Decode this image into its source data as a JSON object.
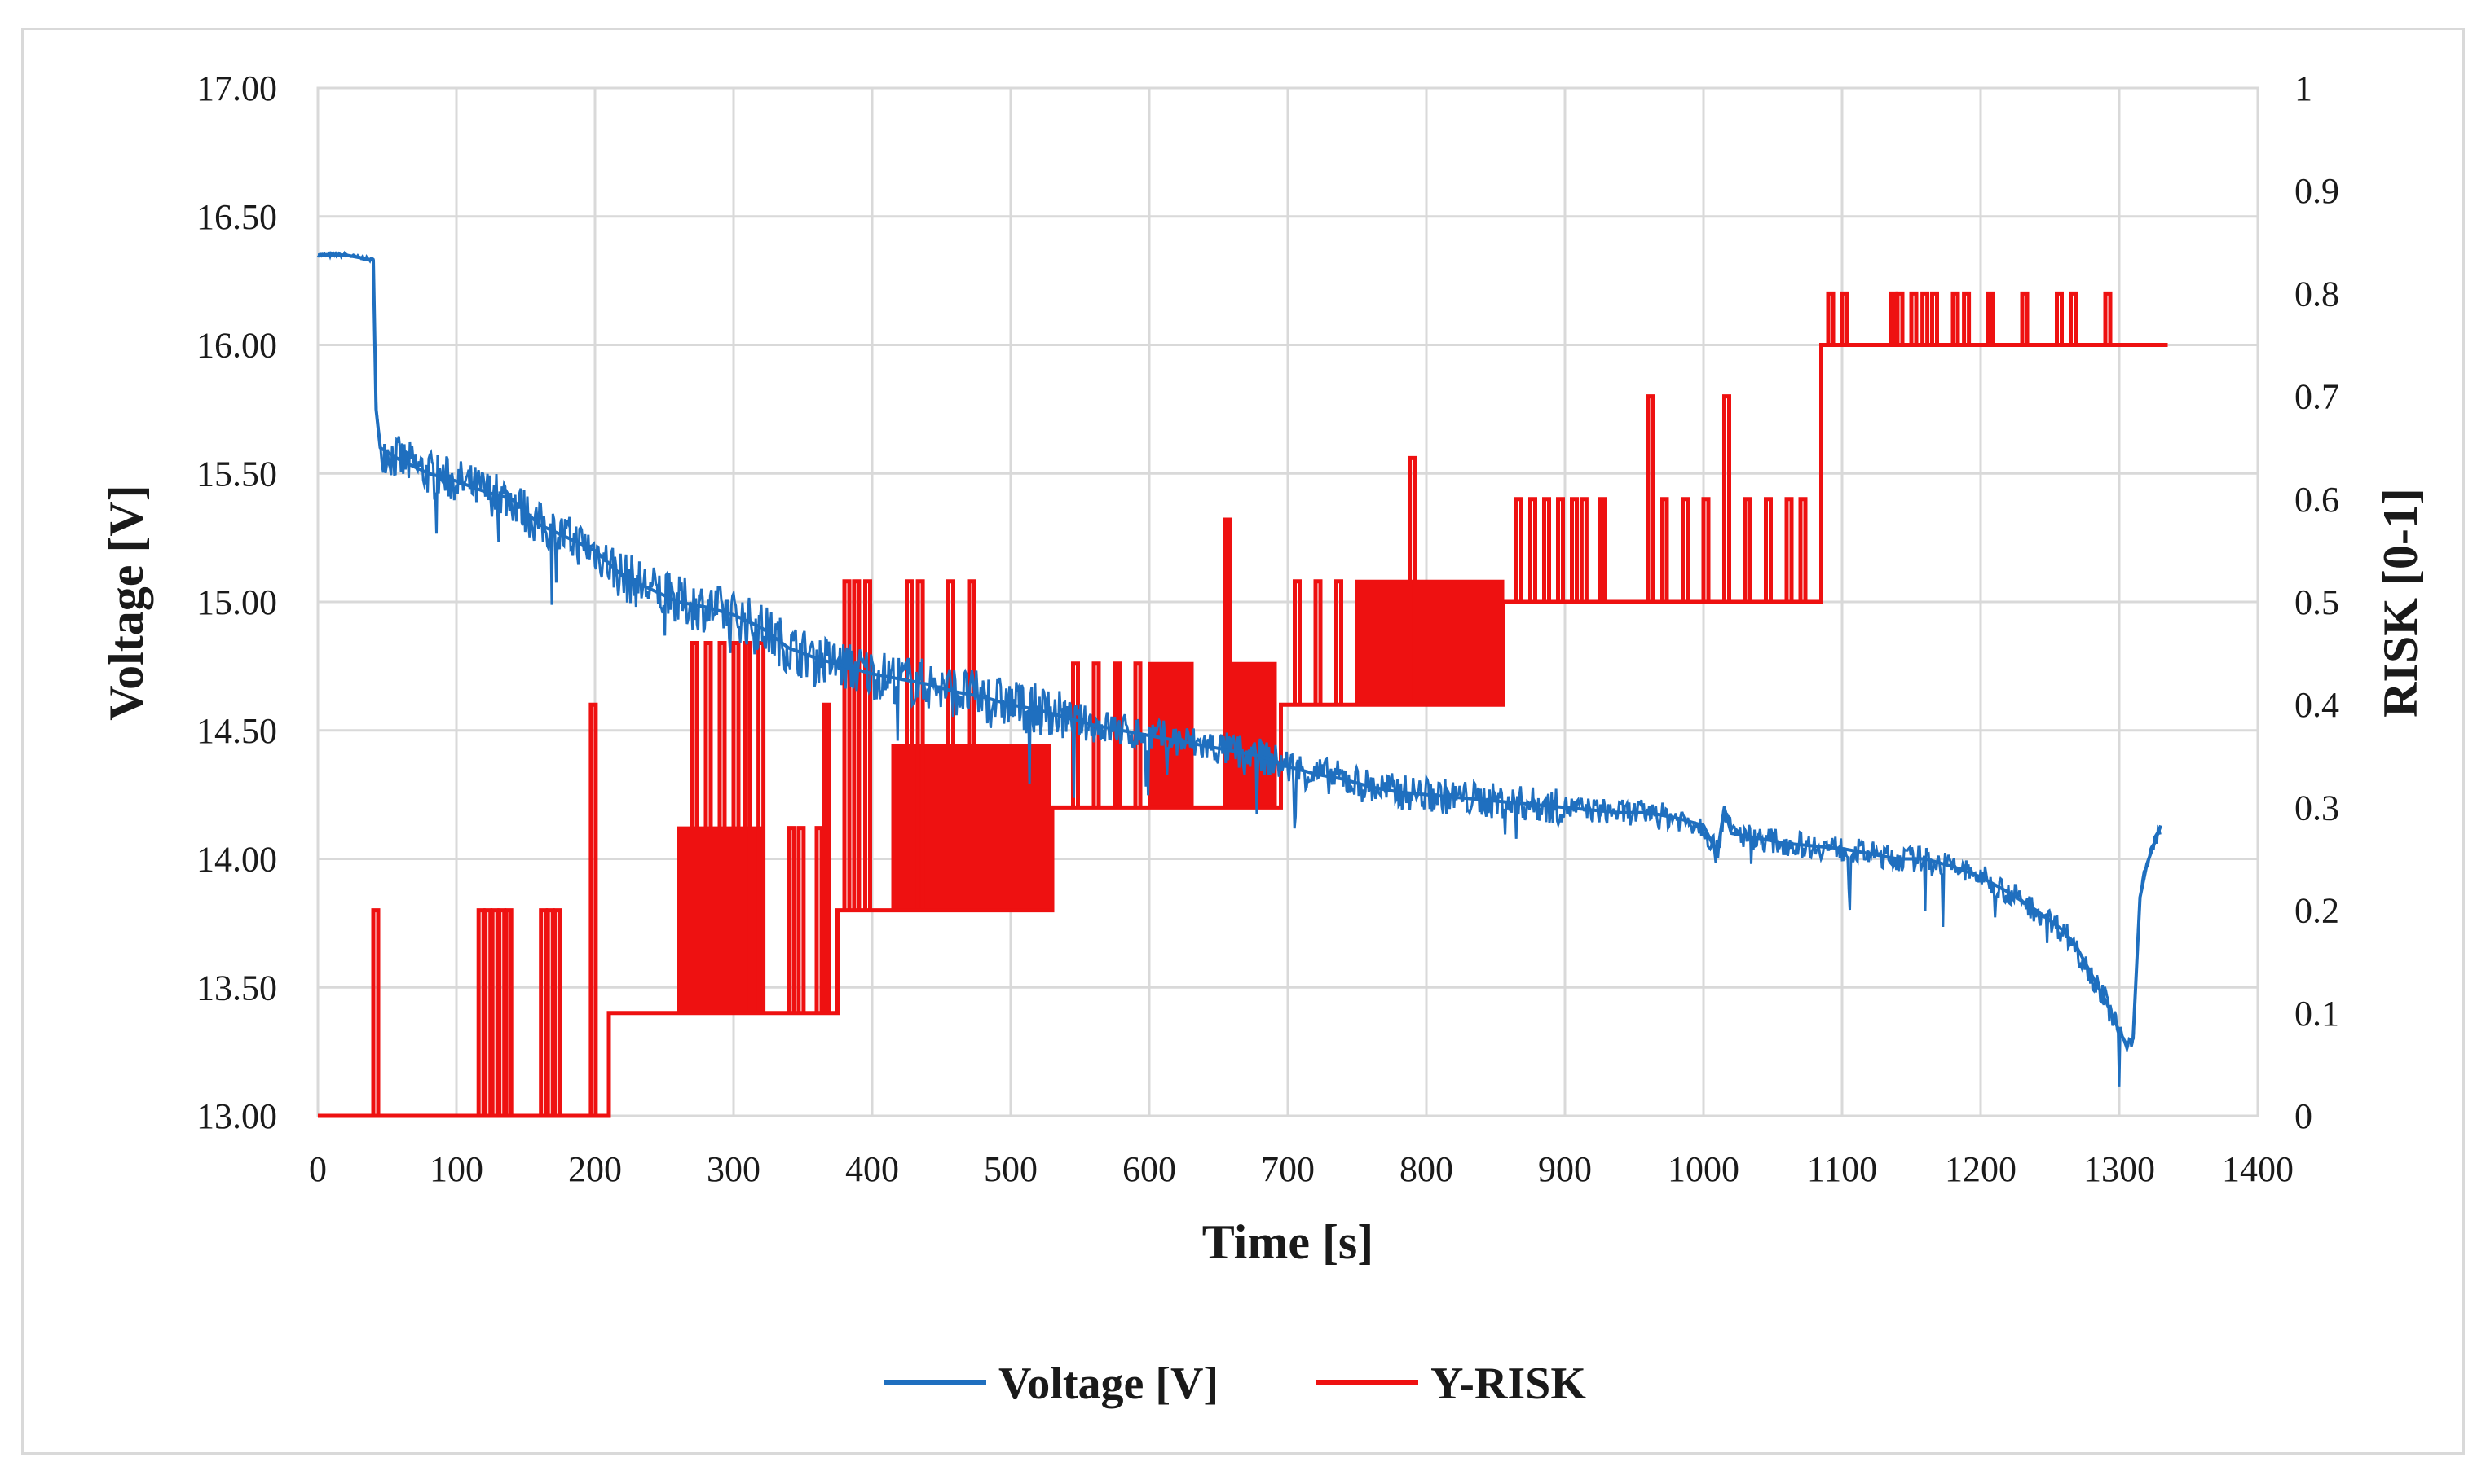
{
  "chart_data": {
    "type": "line",
    "title": "",
    "xlabel": "Time [s]",
    "ylabel": "Voltage [V]",
    "y2label": "RISK [0-1]",
    "xlim": [
      0,
      1400
    ],
    "ylim": [
      13.0,
      17.0
    ],
    "y2lim": [
      0,
      1
    ],
    "grid": true,
    "legend_position": "bottom-center",
    "x_ticks": [
      "0",
      "100",
      "200",
      "300",
      "400",
      "500",
      "600",
      "700",
      "800",
      "900",
      "1000",
      "1100",
      "1200",
      "1300",
      "1400"
    ],
    "y_ticks": [
      "13.00",
      "13.50",
      "14.00",
      "14.50",
      "15.00",
      "15.50",
      "16.00",
      "16.50",
      "17.00"
    ],
    "y2_ticks": [
      "0",
      "0.1",
      "0.2",
      "0.3",
      "0.4",
      "0.5",
      "0.6",
      "0.7",
      "0.8",
      "0.9",
      "1"
    ],
    "series": [
      {
        "name": "Voltage [V]",
        "axis": "left",
        "color": "#1f6fbf",
        "x": [
          0,
          20,
          40,
          42,
          45,
          60,
          80,
          100,
          120,
          140,
          160,
          180,
          200,
          220,
          240,
          260,
          280,
          300,
          320,
          340,
          360,
          380,
          400,
          420,
          440,
          460,
          480,
          500,
          520,
          540,
          560,
          580,
          600,
          620,
          640,
          660,
          680,
          700,
          720,
          740,
          760,
          780,
          800,
          820,
          840,
          860,
          880,
          900,
          920,
          940,
          960,
          980,
          1000,
          1010,
          1015,
          1020,
          1040,
          1060,
          1080,
          1100,
          1120,
          1140,
          1160,
          1180,
          1200,
          1220,
          1240,
          1260,
          1270,
          1280,
          1290,
          1300,
          1305,
          1310,
          1315,
          1320,
          1330
        ],
        "values": [
          16.35,
          16.35,
          16.33,
          15.75,
          15.6,
          15.55,
          15.5,
          15.47,
          15.43,
          15.4,
          15.3,
          15.25,
          15.2,
          15.1,
          15.05,
          15.0,
          14.98,
          14.95,
          14.9,
          14.82,
          14.78,
          14.75,
          14.72,
          14.7,
          14.68,
          14.65,
          14.63,
          14.6,
          14.58,
          14.55,
          14.52,
          14.5,
          14.48,
          14.46,
          14.44,
          14.42,
          14.4,
          14.36,
          14.33,
          14.31,
          14.28,
          14.26,
          14.25,
          14.24,
          14.23,
          14.22,
          14.21,
          14.2,
          14.19,
          14.18,
          14.18,
          14.16,
          14.13,
          14.02,
          14.2,
          14.1,
          14.08,
          14.06,
          14.05,
          14.04,
          14.02,
          14.0,
          14.0,
          13.97,
          13.93,
          13.87,
          13.8,
          13.72,
          13.65,
          13.55,
          13.45,
          13.33,
          13.28,
          13.3,
          13.85,
          13.98,
          14.13
        ]
      },
      {
        "name": "Y-RISK",
        "axis": "right",
        "color": "#ee1111",
        "x": [
          0,
          210,
          210,
          375,
          375,
          530,
          530,
          695,
          695,
          855,
          855,
          1085,
          1085,
          1335
        ],
        "values": [
          0,
          0,
          0.1,
          0.1,
          0.2,
          0.2,
          0.3,
          0.3,
          0.4,
          0.4,
          0.5,
          0.5,
          0.75,
          0.75
        ]
      }
    ],
    "risk_bands": [
      {
        "x_start": 260,
        "x_end": 320,
        "low": 0.1,
        "high": 0.28
      },
      {
        "x_start": 415,
        "x_end": 530,
        "low": 0.2,
        "high": 0.36
      },
      {
        "x_start": 600,
        "x_end": 630,
        "low": 0.3,
        "high": 0.44
      },
      {
        "x_start": 660,
        "x_end": 690,
        "low": 0.3,
        "high": 0.44
      },
      {
        "x_start": 750,
        "x_end": 855,
        "low": 0.4,
        "high": 0.52
      }
    ],
    "risk_spikes": [
      {
        "x": 40,
        "base": 0,
        "top": 0.2
      },
      {
        "x": 116,
        "base": 0,
        "top": 0.2
      },
      {
        "x": 121,
        "base": 0,
        "top": 0.2
      },
      {
        "x": 126,
        "base": 0,
        "top": 0.2
      },
      {
        "x": 131,
        "base": 0,
        "top": 0.2
      },
      {
        "x": 136,
        "base": 0,
        "top": 0.2
      },
      {
        "x": 161,
        "base": 0,
        "top": 0.2
      },
      {
        "x": 166,
        "base": 0,
        "top": 0.2
      },
      {
        "x": 171,
        "base": 0,
        "top": 0.2
      },
      {
        "x": 197,
        "base": 0,
        "top": 0.4
      },
      {
        "x": 270,
        "base": 0.1,
        "top": 0.46
      },
      {
        "x": 280,
        "base": 0.1,
        "top": 0.46
      },
      {
        "x": 290,
        "base": 0.1,
        "top": 0.46
      },
      {
        "x": 300,
        "base": 0.1,
        "top": 0.46
      },
      {
        "x": 308,
        "base": 0.1,
        "top": 0.46
      },
      {
        "x": 318,
        "base": 0.1,
        "top": 0.46
      },
      {
        "x": 340,
        "base": 0.1,
        "top": 0.28
      },
      {
        "x": 347,
        "base": 0.1,
        "top": 0.28
      },
      {
        "x": 360,
        "base": 0.1,
        "top": 0.28
      },
      {
        "x": 365,
        "base": 0.1,
        "top": 0.4
      },
      {
        "x": 380,
        "base": 0.2,
        "top": 0.52
      },
      {
        "x": 387,
        "base": 0.2,
        "top": 0.52
      },
      {
        "x": 395,
        "base": 0.2,
        "top": 0.52
      },
      {
        "x": 425,
        "base": 0.2,
        "top": 0.52
      },
      {
        "x": 433,
        "base": 0.2,
        "top": 0.52
      },
      {
        "x": 455,
        "base": 0.2,
        "top": 0.52
      },
      {
        "x": 470,
        "base": 0.2,
        "top": 0.52
      },
      {
        "x": 545,
        "base": 0.3,
        "top": 0.44
      },
      {
        "x": 560,
        "base": 0.3,
        "top": 0.44
      },
      {
        "x": 575,
        "base": 0.3,
        "top": 0.44
      },
      {
        "x": 590,
        "base": 0.3,
        "top": 0.44
      },
      {
        "x": 655,
        "base": 0.3,
        "top": 0.58
      },
      {
        "x": 705,
        "base": 0.4,
        "top": 0.52
      },
      {
        "x": 720,
        "base": 0.4,
        "top": 0.52
      },
      {
        "x": 735,
        "base": 0.4,
        "top": 0.52
      },
      {
        "x": 788,
        "base": 0.4,
        "top": 0.64
      },
      {
        "x": 865,
        "base": 0.5,
        "top": 0.6
      },
      {
        "x": 875,
        "base": 0.5,
        "top": 0.6
      },
      {
        "x": 885,
        "base": 0.5,
        "top": 0.6
      },
      {
        "x": 895,
        "base": 0.5,
        "top": 0.6
      },
      {
        "x": 905,
        "base": 0.5,
        "top": 0.6
      },
      {
        "x": 912,
        "base": 0.5,
        "top": 0.6
      },
      {
        "x": 925,
        "base": 0.5,
        "top": 0.6
      },
      {
        "x": 960,
        "base": 0.5,
        "top": 0.7
      },
      {
        "x": 970,
        "base": 0.5,
        "top": 0.6
      },
      {
        "x": 985,
        "base": 0.5,
        "top": 0.6
      },
      {
        "x": 1000,
        "base": 0.5,
        "top": 0.6
      },
      {
        "x": 1015,
        "base": 0.5,
        "top": 0.7
      },
      {
        "x": 1030,
        "base": 0.5,
        "top": 0.6
      },
      {
        "x": 1045,
        "base": 0.5,
        "top": 0.6
      },
      {
        "x": 1060,
        "base": 0.5,
        "top": 0.6
      },
      {
        "x": 1070,
        "base": 0.5,
        "top": 0.6
      },
      {
        "x": 1090,
        "base": 0.75,
        "top": 0.8
      },
      {
        "x": 1100,
        "base": 0.75,
        "top": 0.8
      },
      {
        "x": 1135,
        "base": 0.75,
        "top": 0.8
      },
      {
        "x": 1140,
        "base": 0.75,
        "top": 0.8
      },
      {
        "x": 1150,
        "base": 0.75,
        "top": 0.8
      },
      {
        "x": 1158,
        "base": 0.75,
        "top": 0.8
      },
      {
        "x": 1165,
        "base": 0.75,
        "top": 0.8
      },
      {
        "x": 1180,
        "base": 0.75,
        "top": 0.8
      },
      {
        "x": 1188,
        "base": 0.75,
        "top": 0.8
      },
      {
        "x": 1205,
        "base": 0.75,
        "top": 0.8
      },
      {
        "x": 1230,
        "base": 0.75,
        "top": 0.8
      },
      {
        "x": 1255,
        "base": 0.75,
        "top": 0.8
      },
      {
        "x": 1265,
        "base": 0.75,
        "top": 0.8
      },
      {
        "x": 1290,
        "base": 0.75,
        "top": 0.8
      }
    ]
  }
}
